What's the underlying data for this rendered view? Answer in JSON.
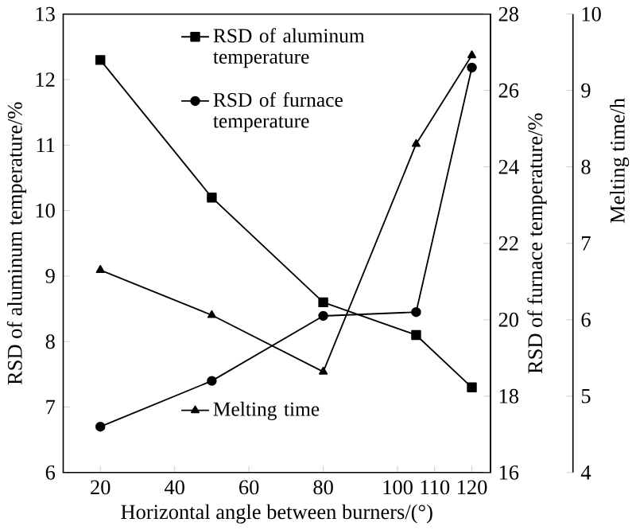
{
  "chart_data": {
    "type": "line",
    "xlabel": "Horizontal angle between burners/(°)",
    "ylabel": "RSD of aluminum temperature/%",
    "y2label": "RSD of furnace temperature/%",
    "y3label": "Melting time/h",
    "x": [
      20,
      50,
      80,
      105,
      120
    ],
    "xlim": [
      10,
      125
    ],
    "xticks": [
      20,
      40,
      60,
      80,
      100,
      110,
      120
    ],
    "ylim": [
      6,
      13
    ],
    "yticks": [
      6,
      7,
      8,
      9,
      10,
      11,
      12,
      13
    ],
    "y2lim": [
      16,
      28
    ],
    "y2ticks": [
      16,
      18,
      20,
      22,
      24,
      26,
      28
    ],
    "y3lim": [
      4,
      10
    ],
    "y3ticks": [
      4,
      5,
      6,
      7,
      8,
      9,
      10
    ],
    "legend": "top",
    "line_style": "solid",
    "grid": false,
    "series": [
      {
        "name": "RSD of aluminum temperature",
        "color": "#000000",
        "marker": "square",
        "axis": "y",
        "values": [
          12.3,
          10.2,
          8.6,
          8.1,
          7.3
        ]
      },
      {
        "name": "RSD of furnace temperature",
        "color": "#000000",
        "marker": "circle",
        "axis": "y2",
        "values": [
          17.2,
          18.4,
          20.1,
          20.2,
          26.6
        ]
      },
      {
        "name": "Melting time",
        "color": "#000000",
        "marker": "triangle",
        "axis": "y3",
        "values": [
          6.65,
          6.06,
          5.32,
          8.3,
          9.46
        ]
      }
    ]
  }
}
